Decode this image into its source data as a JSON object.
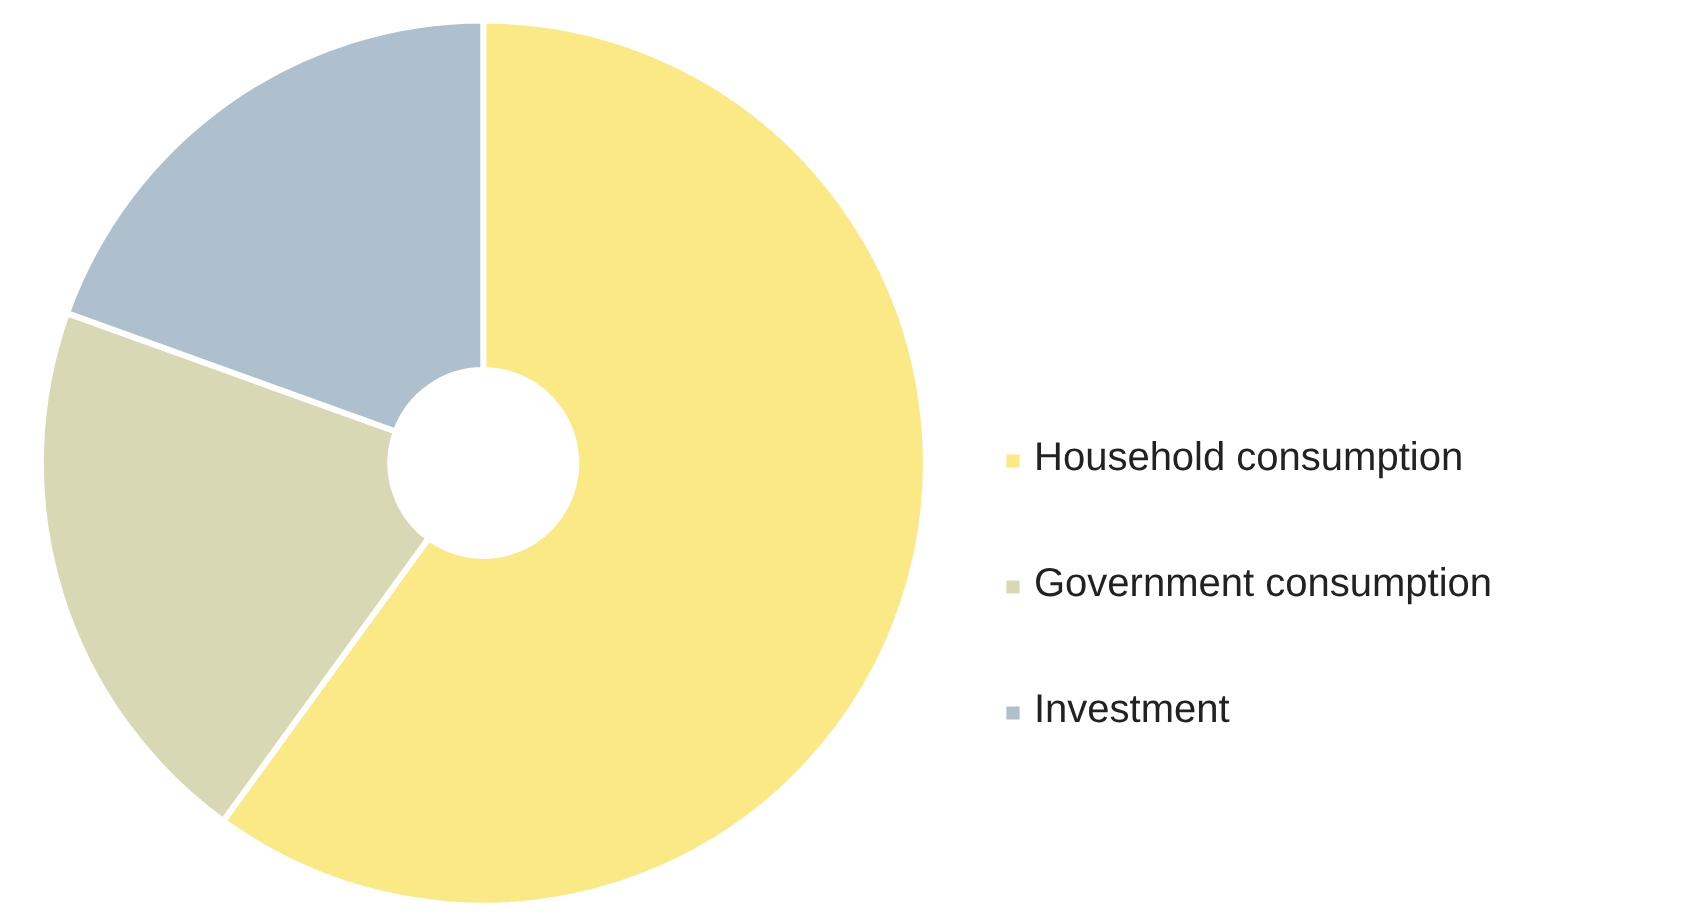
{
  "chart_data": {
    "type": "donut",
    "categories": [
      "Household consumption",
      "Government consumption",
      "Investment"
    ],
    "values": [
      60,
      20.5,
      19.5
    ],
    "colors": [
      "#fbe985",
      "#d8d8b5",
      "#aec0ce"
    ],
    "legend": "right"
  }
}
